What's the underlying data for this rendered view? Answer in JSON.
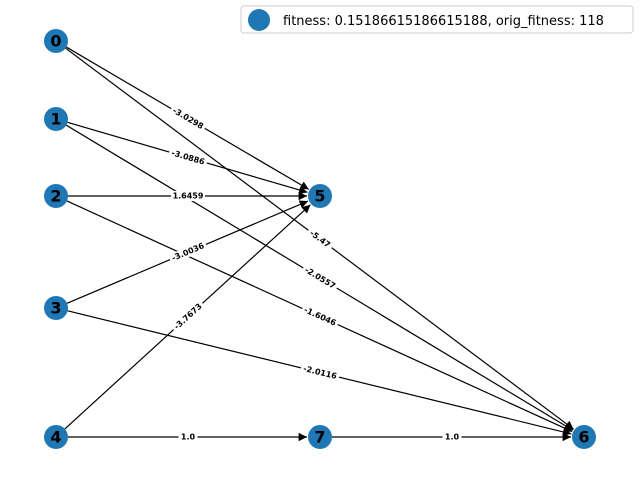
{
  "legend": {
    "text": "fitness: 0.15186615186615188, orig_fitness: 118"
  },
  "colors": {
    "node_fill": "#1f77b4",
    "edge": "#000000",
    "background": "#ffffff"
  },
  "graph": {
    "nodes": [
      {
        "id": "0",
        "label": "0"
      },
      {
        "id": "1",
        "label": "1"
      },
      {
        "id": "2",
        "label": "2"
      },
      {
        "id": "3",
        "label": "3"
      },
      {
        "id": "4",
        "label": "4"
      },
      {
        "id": "5",
        "label": "5"
      },
      {
        "id": "6",
        "label": "6"
      },
      {
        "id": "7",
        "label": "7"
      }
    ],
    "edges": [
      {
        "source": "0",
        "target": "5",
        "label": "-3.0298"
      },
      {
        "source": "0",
        "target": "6",
        "label": "-5.47"
      },
      {
        "source": "1",
        "target": "5",
        "label": "-3.0886"
      },
      {
        "source": "1",
        "target": "6",
        "label": "-2.0557"
      },
      {
        "source": "2",
        "target": "5",
        "label": "1.6459"
      },
      {
        "source": "2",
        "target": "6",
        "label": "-1.6046"
      },
      {
        "source": "3",
        "target": "5",
        "label": "-3.0036"
      },
      {
        "source": "3",
        "target": "6",
        "label": "-2.0116"
      },
      {
        "source": "4",
        "target": "5",
        "label": "-3.7673"
      },
      {
        "source": "4",
        "target": "7",
        "label": "1.0"
      },
      {
        "source": "7",
        "target": "6",
        "label": "1.0"
      }
    ]
  }
}
